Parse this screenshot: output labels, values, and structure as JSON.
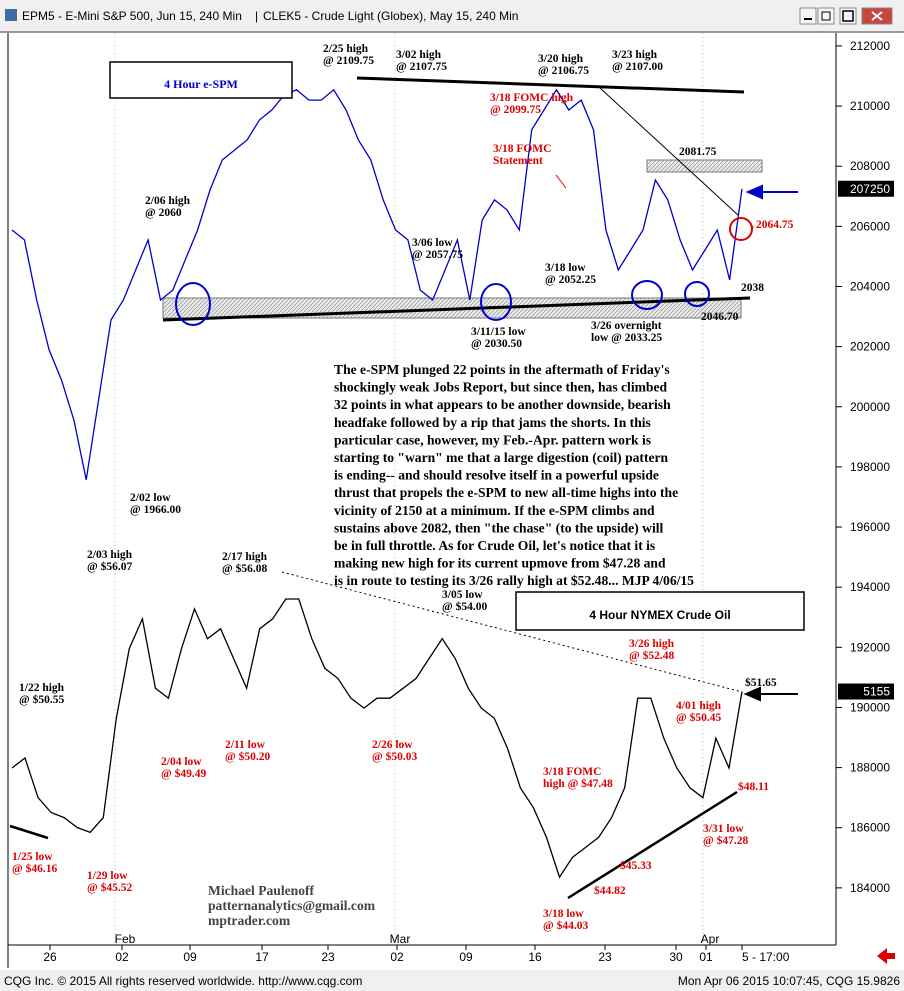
{
  "window_title": [
    "EPM5 - E-Mini S&P 500, Jun 15, 240 Min",
    "CLEK5 - Crude Light (Globex), May 15, 240 Min"
  ],
  "chart_data": [
    {
      "type": "line",
      "title": "4 Hour e-SPM",
      "color": "#0000cc",
      "ylim": [
        182100,
        212430
      ],
      "yticks": [
        212000,
        210000,
        208000,
        206000,
        204000,
        202000,
        200000,
        198000,
        196000,
        194000,
        192000,
        190000,
        188000,
        186000,
        184000
      ],
      "last": 207250,
      "values": [
        205880,
        205550,
        203550,
        201890,
        200890,
        199560,
        197570,
        200230,
        202890,
        203550,
        204550,
        205550,
        203550,
        203880,
        204880,
        205880,
        207210,
        208210,
        208540,
        208870,
        209540,
        209870,
        210370,
        210540,
        210200,
        210200,
        210540,
        209870,
        208870,
        208210,
        206880,
        205880,
        205550,
        203880,
        203550,
        204550,
        205550,
        203550,
        206210,
        206880,
        206550,
        205880,
        209210,
        209870,
        210540,
        209870,
        210200,
        209210,
        205880,
        204550,
        205210,
        205880,
        207540,
        206880,
        205550,
        204550,
        205210,
        205880,
        204220,
        207250
      ],
      "annotations": [
        {
          "text": [
            "2/25 high",
            "@ 2109.75"
          ],
          "color": "#000000"
        },
        {
          "text": [
            "3/02 high",
            "@ 2107.75"
          ],
          "color": "#000000"
        },
        {
          "text": [
            "3/20 high",
            "@ 2106.75"
          ],
          "color": "#000000"
        },
        {
          "text": [
            "3/23 high",
            "@ 2107.00"
          ],
          "color": "#000000"
        },
        {
          "text": [
            "3/18 FOMC high",
            "@ 2099.75"
          ],
          "color": "#dd0000"
        },
        {
          "text": [
            "3/18 FOMC",
            "Statement"
          ],
          "color": "#dd0000"
        },
        {
          "text": [
            "2081.75"
          ],
          "color": "#000000"
        },
        {
          "text": [
            "2/06 high",
            "@ 2060"
          ],
          "color": "#000000"
        },
        {
          "text": [
            "3/06 low",
            "@ 2057.75"
          ],
          "color": "#000000"
        },
        {
          "text": [
            "3/18 low",
            "@ 2052.25"
          ],
          "color": "#000000"
        },
        {
          "text": [
            "2064.75"
          ],
          "color": "#dd0000"
        },
        {
          "text": [
            "2038"
          ],
          "color": "#000000"
        },
        {
          "text": [
            "2046.70"
          ],
          "color": "#000000"
        },
        {
          "text": [
            "3/11/15 low",
            "@ 2030.50"
          ],
          "color": "#000000"
        },
        {
          "text": [
            "3/26 overnight",
            "low @ 2033.25"
          ],
          "color": "#000000"
        },
        {
          "text": [
            "2/02 low",
            "@ 1966.00"
          ],
          "color": "#000000"
        }
      ]
    },
    {
      "type": "line",
      "title": "4 Hour NYMEX Crude Oil",
      "color": "#000000",
      "ylim": [
        42.1,
        76.1
      ],
      "last": {
        "value": 51.55,
        "label": "5155"
      },
      "values": [
        48.7,
        49.07,
        47.59,
        47.04,
        46.85,
        46.48,
        46.3,
        46.85,
        50.55,
        53.15,
        54.26,
        51.67,
        51.3,
        53.15,
        54.63,
        53.52,
        53.89,
        52.78,
        51.67,
        53.89,
        54.26,
        55.0,
        55.0,
        53.52,
        52.41,
        52.04,
        51.3,
        50.93,
        51.3,
        51.3,
        51.67,
        52.04,
        52.78,
        53.52,
        52.78,
        51.67,
        50.93,
        50.55,
        49.44,
        47.96,
        47.22,
        46.11,
        44.63,
        45.37,
        45.74,
        46.11,
        46.85,
        47.96,
        51.3,
        51.3,
        49.81,
        48.7,
        47.96,
        47.59,
        49.81,
        48.7,
        51.55
      ],
      "annotations": [
        {
          "text": [
            "2/03 high",
            "@ $56.07"
          ],
          "color": "#000000"
        },
        {
          "text": [
            "2/17 high",
            "@ $56.08"
          ],
          "color": "#000000"
        },
        {
          "text": [
            "3/05 low",
            "@ $54.00"
          ],
          "color": "#000000"
        },
        {
          "text": [
            "1/22 high",
            "@ $50.55"
          ],
          "color": "#000000"
        },
        {
          "text": [
            "3/26 high",
            "@ $52.48"
          ],
          "color": "#dd0000"
        },
        {
          "text": [
            "$51.65"
          ],
          "color": "#000000"
        },
        {
          "text": [
            "4/01 high",
            "@ $50.45"
          ],
          "color": "#dd0000"
        },
        {
          "text": [
            "2/04 low",
            "@ $49.49"
          ],
          "color": "#dd0000"
        },
        {
          "text": [
            "2/11 low",
            "@ $50.20"
          ],
          "color": "#dd0000"
        },
        {
          "text": [
            "2/26 low",
            "@ $50.03"
          ],
          "color": "#dd0000"
        },
        {
          "text": [
            "3/18 FOMC",
            "high @ $47.48"
          ],
          "color": "#dd0000"
        },
        {
          "text": [
            "$48.11"
          ],
          "color": "#dd0000"
        },
        {
          "text": [
            "3/31 low",
            "@ $47.28"
          ],
          "color": "#dd0000"
        },
        {
          "text": [
            "$45.33"
          ],
          "color": "#dd0000"
        },
        {
          "text": [
            "$44.82"
          ],
          "color": "#dd0000"
        },
        {
          "text": [
            "3/18 low",
            "@ $44.03"
          ],
          "color": "#dd0000"
        },
        {
          "text": [
            "1/25 low",
            "@ $46.16"
          ],
          "color": "#dd0000"
        },
        {
          "text": [
            "1/29 low",
            "@ $45.52"
          ],
          "color": "#dd0000"
        }
      ]
    }
  ],
  "xaxis": {
    "ticks": [
      "26",
      "02",
      "09",
      "17",
      "23",
      "02",
      "09",
      "16",
      "23",
      "30",
      "01",
      "5 - 17:00"
    ],
    "months": [
      "Feb",
      "Mar",
      "Apr"
    ]
  },
  "commentary": [
    "The e-SPM plunged 22 points in the aftermath of Friday's",
    "shockingly weak Jobs Report, but since then, has climbed",
    "32 points in what appears to be another downside, bearish",
    "headfake followed by a rip that jams the shorts. In this",
    "particular case, however, my Feb.-Apr. pattern work is",
    "starting to \"warn\" me that a large digestion (coil) pattern",
    "is ending-- and should resolve itself in a powerful upside",
    "thrust that propels the e-SPM to new all-time highs into the",
    "vicinity of 2150 at a minimum. If the e-SPM climbs and",
    "sustains above 2082, then \"the chase\" (to the upside) will",
    "be in full throttle. As for Crude Oil, let's notice that it is",
    "making new high for its current upmove from $47.28 and",
    "is in route to testing its 3/26 rally high at $52.48... MJP 4/06/15"
  ],
  "signature": [
    "Michael Paulenoff",
    "patternanalytics@gmail.com",
    "mptrader.com"
  ],
  "status_bar": {
    "left": "CQG Inc. © 2015 All rights reserved worldwide. http://www.cqg.com",
    "right": "Mon Apr 06 2015 10:07:45, CQG 15.9826"
  }
}
